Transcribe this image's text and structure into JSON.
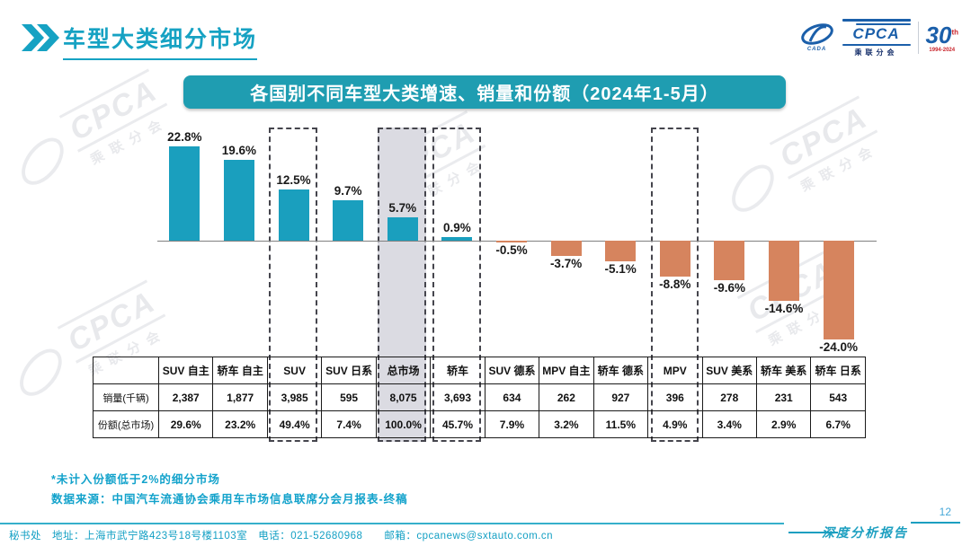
{
  "header": {
    "title": "车型大类细分市场"
  },
  "logo": {
    "cpca": "CPCA",
    "branch": "乘联分会",
    "swoosh_caption": "CADA",
    "anniversary": "30",
    "anniversary_suffix": "th",
    "years": "1994-2024"
  },
  "banner": {
    "title": "各国别不同车型大类增速、销量和份额（2024年1-5月）"
  },
  "chart_data": {
    "type": "bar",
    "title": "各国别不同车型大类增速、销量和份额（2024年1-5月）",
    "categories": [
      "SUV 自主",
      "轿车 自主",
      "SUV",
      "SUV 日系",
      "总市场",
      "轿车",
      "SUV 德系",
      "MPV 自主",
      "轿车 德系",
      "MPV",
      "SUV 美系",
      "轿车 美系",
      "轿车 日系"
    ],
    "growth_pct": [
      22.8,
      19.6,
      12.5,
      9.7,
      5.7,
      0.9,
      -0.5,
      -3.7,
      -5.1,
      -8.8,
      -9.6,
      -14.6,
      -24.0
    ],
    "series": [
      {
        "name": "增速(%)",
        "values": [
          22.8,
          19.6,
          12.5,
          9.7,
          5.7,
          0.9,
          -0.5,
          -3.7,
          -5.1,
          -8.8,
          -9.6,
          -14.6,
          -24.0
        ]
      },
      {
        "name": "销量(千辆)",
        "values": [
          2387,
          1877,
          3985,
          595,
          8075,
          3693,
          634,
          262,
          927,
          396,
          278,
          231,
          543
        ]
      },
      {
        "name": "份额(总市场)%",
        "values": [
          29.6,
          23.2,
          49.4,
          7.4,
          100.0,
          45.7,
          7.9,
          3.2,
          11.5,
          4.9,
          3.4,
          2.9,
          6.7
        ]
      }
    ],
    "value_labels": true,
    "grid": false,
    "legend": "none",
    "ylim": [
      -26,
      26
    ],
    "positive_color": "#1A9FBE",
    "negative_color": "#D6845E",
    "highlight_columns": {
      "dashed": [
        "SUV",
        "总市场",
        "轿车",
        "MPV"
      ],
      "gray_fill": [
        "总市场"
      ]
    }
  },
  "table": {
    "row_headers": [
      "销量(千辆)",
      "份额(总市场)"
    ],
    "rows": [
      [
        "2,387",
        "1,877",
        "3,985",
        "595",
        "8,075",
        "3,693",
        "634",
        "262",
        "927",
        "396",
        "278",
        "231",
        "543"
      ],
      [
        "29.6%",
        "23.2%",
        "49.4%",
        "7.4%",
        "100.0%",
        "45.7%",
        "7.9%",
        "3.2%",
        "11.5%",
        "4.9%",
        "3.4%",
        "2.9%",
        "6.7%"
      ]
    ]
  },
  "footnotes": [
    "*未计入份额低于2%的细分市场",
    "数据来源：中国汽车流通协会乘用车市场信息联席分会月报表-终稿"
  ],
  "footer": {
    "contact": "秘书处　地址：上海市武宁路423号18号楼1103室　电话：021-52680968　　邮箱：cpcanews@sxtauto.com.cn",
    "report_label": "深度分析报告",
    "page_number": "12"
  },
  "watermark": {
    "text": "CPCA",
    "subtext": "乘联分会"
  },
  "colors": {
    "accent_teal": "#16A2C3",
    "banner_bg": "#1F9DB1",
    "bar_positive": "#1A9FBE",
    "bar_negative": "#D6845E",
    "highlight_gray": "#DBDBE2",
    "logo_blue": "#1B5FAA",
    "logo_red": "#C9252C"
  }
}
